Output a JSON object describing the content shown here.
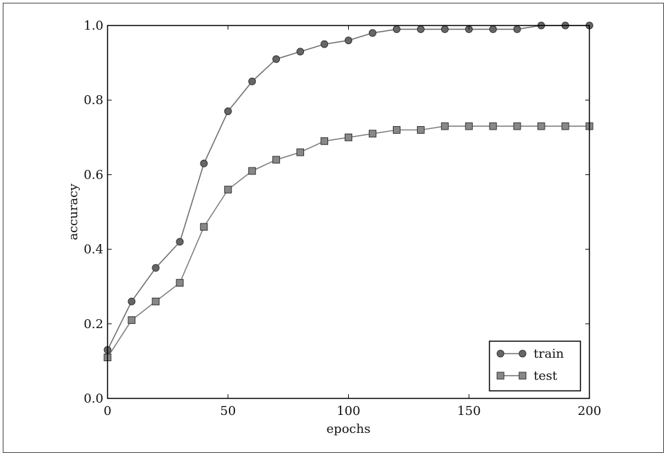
{
  "chart_data": {
    "type": "line",
    "title": "",
    "xlabel": "epochs",
    "ylabel": "accuracy",
    "xlim": [
      0,
      200
    ],
    "ylim": [
      0.0,
      1.0
    ],
    "xticks": [
      0,
      50,
      100,
      150,
      200
    ],
    "yticks": [
      0.0,
      0.2,
      0.4,
      0.6,
      0.8,
      1.0
    ],
    "xtick_labels": [
      "0",
      "50",
      "100",
      "150",
      "200"
    ],
    "ytick_labels": [
      "0.0",
      "0.2",
      "0.4",
      "0.6",
      "0.8",
      "1.0"
    ],
    "grid": false,
    "legend_position": "bottom-right",
    "series": [
      {
        "name": "train",
        "marker": "circle",
        "x": [
          0,
          10,
          20,
          30,
          40,
          50,
          60,
          70,
          80,
          90,
          100,
          110,
          120,
          130,
          140,
          150,
          160,
          170,
          180,
          190,
          200
        ],
        "values": [
          0.13,
          0.26,
          0.35,
          0.42,
          0.63,
          0.77,
          0.85,
          0.91,
          0.93,
          0.95,
          0.96,
          0.98,
          0.99,
          0.99,
          0.99,
          0.99,
          0.99,
          0.99,
          1.0,
          1.0,
          1.0
        ],
        "color": "#666666"
      },
      {
        "name": "test",
        "marker": "square",
        "x": [
          0,
          10,
          20,
          30,
          40,
          50,
          60,
          70,
          80,
          90,
          100,
          110,
          120,
          130,
          140,
          150,
          160,
          170,
          180,
          190,
          200
        ],
        "values": [
          0.11,
          0.21,
          0.26,
          0.31,
          0.46,
          0.56,
          0.61,
          0.64,
          0.66,
          0.69,
          0.7,
          0.71,
          0.72,
          0.72,
          0.73,
          0.73,
          0.73,
          0.73,
          0.73,
          0.73,
          0.73
        ],
        "color": "#888888"
      }
    ]
  }
}
